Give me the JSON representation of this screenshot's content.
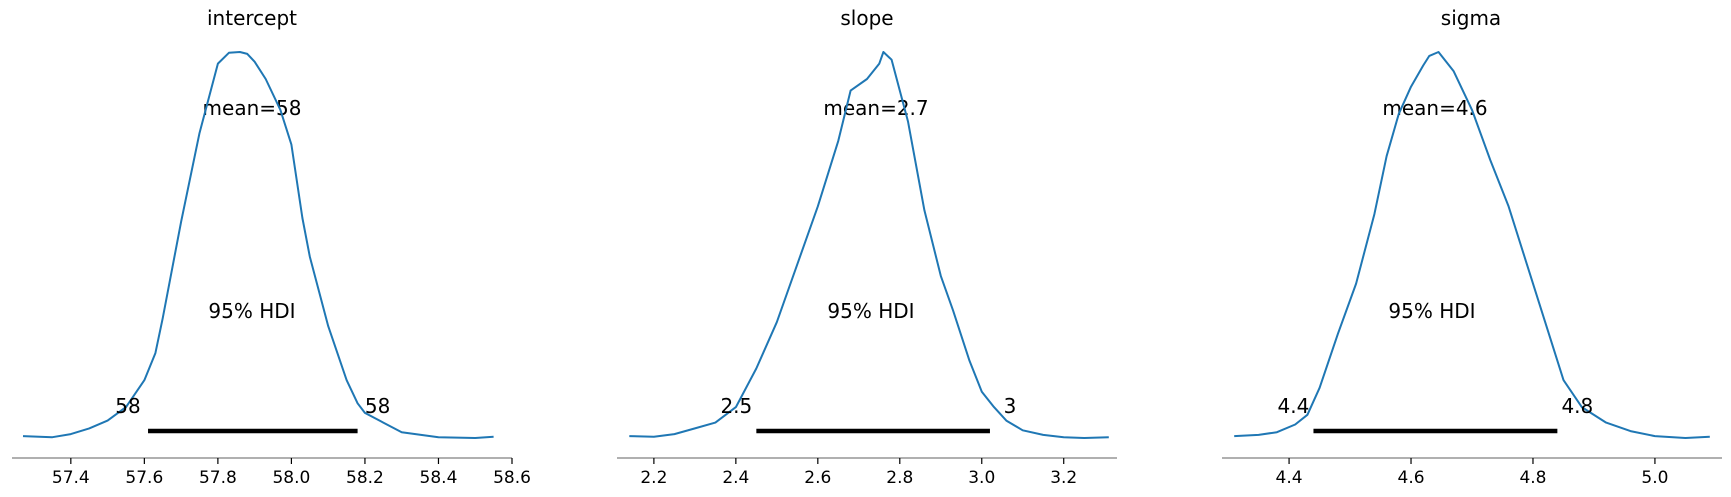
{
  "colors": {
    "kde": "#1f77b4",
    "hdi": "#000000",
    "axis": "#808080"
  },
  "chart_data": [
    {
      "type": "line",
      "title": "intercept",
      "mean_label": "mean=58",
      "hdi_label": "95% HDI",
      "hdi": {
        "low": 57.61,
        "high": 58.18,
        "low_label": "58",
        "high_label": "58"
      },
      "xlim": [
        57.24,
        58.6
      ],
      "xticks": [
        57.4,
        57.6,
        57.8,
        58.0,
        58.2,
        58.4,
        58.6
      ],
      "xtick_labels": [
        "57.4",
        "57.6",
        "57.8",
        "58.0",
        "58.2",
        "58.4",
        "58.6"
      ],
      "x": [
        57.27,
        57.35,
        57.4,
        57.45,
        57.5,
        57.55,
        57.6,
        57.63,
        57.65,
        57.7,
        57.75,
        57.8,
        57.83,
        57.86,
        57.88,
        57.9,
        57.93,
        57.97,
        58.0,
        58.03,
        58.05,
        58.1,
        58.15,
        58.18,
        58.2,
        58.25,
        58.3,
        58.4,
        58.5,
        58.55
      ],
      "y": [
        0.005,
        0.002,
        0.01,
        0.025,
        0.045,
        0.08,
        0.15,
        0.22,
        0.31,
        0.56,
        0.79,
        0.97,
        0.998,
        1.0,
        0.995,
        0.975,
        0.93,
        0.85,
        0.76,
        0.57,
        0.47,
        0.29,
        0.15,
        0.09,
        0.065,
        0.04,
        0.015,
        0.002,
        0.0,
        0.003
      ]
    },
    {
      "type": "line",
      "title": "slope",
      "mean_label": "mean=2.7",
      "hdi_label": "95% HDI",
      "hdi": {
        "low": 2.45,
        "high": 3.02,
        "low_label": "2.5",
        "high_label": "3"
      },
      "xlim": [
        2.11,
        3.33
      ],
      "xticks": [
        2.2,
        2.4,
        2.6,
        2.8,
        3.0,
        3.2
      ],
      "xtick_labels": [
        "2.2",
        "2.4",
        "2.6",
        "2.8",
        "3.0",
        "3.2"
      ],
      "x": [
        2.14,
        2.2,
        2.25,
        2.3,
        2.35,
        2.4,
        2.45,
        2.5,
        2.55,
        2.6,
        2.65,
        2.68,
        2.72,
        2.75,
        2.76,
        2.78,
        2.82,
        2.86,
        2.9,
        2.93,
        2.97,
        3.0,
        3.03,
        3.06,
        3.1,
        3.15,
        3.2,
        3.25,
        3.31
      ],
      "y": [
        0.005,
        0.003,
        0.01,
        0.025,
        0.04,
        0.08,
        0.18,
        0.3,
        0.45,
        0.6,
        0.77,
        0.9,
        0.93,
        0.97,
        1.0,
        0.98,
        0.82,
        0.59,
        0.42,
        0.33,
        0.2,
        0.12,
        0.08,
        0.045,
        0.02,
        0.008,
        0.002,
        0.0,
        0.002
      ]
    },
    {
      "type": "line",
      "title": "sigma",
      "mean_label": "mean=4.6",
      "hdi_label": "95% HDI",
      "hdi": {
        "low": 4.44,
        "high": 4.84,
        "low_label": "4.4",
        "high_label": "4.8"
      },
      "xlim": [
        4.29,
        5.11
      ],
      "xticks": [
        4.4,
        4.6,
        4.8,
        5.0
      ],
      "xtick_labels": [
        "4.4",
        "4.6",
        "4.8",
        "5.0"
      ],
      "x": [
        4.31,
        4.35,
        4.38,
        4.41,
        4.43,
        4.45,
        4.48,
        4.51,
        4.54,
        4.56,
        4.58,
        4.6,
        4.62,
        4.63,
        4.645,
        4.67,
        4.7,
        4.73,
        4.76,
        4.79,
        4.82,
        4.85,
        4.88,
        4.92,
        4.96,
        5.0,
        5.05,
        5.09
      ],
      "y": [
        0.005,
        0.008,
        0.015,
        0.035,
        0.06,
        0.13,
        0.27,
        0.4,
        0.58,
        0.73,
        0.84,
        0.91,
        0.965,
        0.99,
        1.0,
        0.95,
        0.85,
        0.72,
        0.6,
        0.45,
        0.3,
        0.15,
        0.08,
        0.04,
        0.018,
        0.005,
        0.0,
        0.003
      ]
    }
  ]
}
